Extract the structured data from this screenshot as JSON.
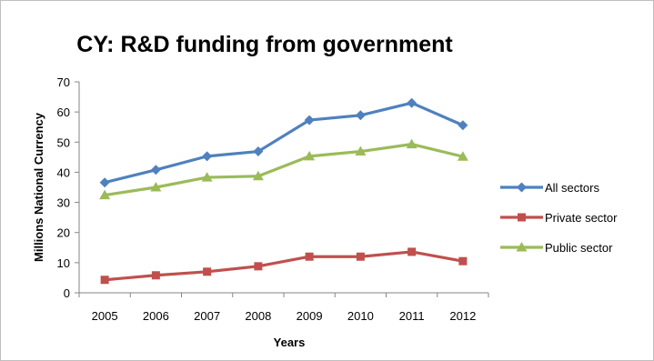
{
  "chart_data": {
    "type": "line",
    "title": "CY: R&D funding from government",
    "xlabel": "Years",
    "ylabel": "Millions National Currency",
    "categories": [
      "2005",
      "2006",
      "2007",
      "2008",
      "2009",
      "2010",
      "2011",
      "2012"
    ],
    "ylim": [
      0,
      70
    ],
    "yticks": [
      0,
      10,
      20,
      30,
      40,
      50,
      60,
      70
    ],
    "grid": false,
    "legend_position": "right",
    "series": [
      {
        "name": "All sectors",
        "color": "#4f81bd",
        "marker": "diamond",
        "values": [
          36.6,
          40.8,
          45.3,
          46.9,
          57.3,
          58.9,
          63.0,
          55.6
        ]
      },
      {
        "name": "Private sector",
        "color": "#c0504d",
        "marker": "square",
        "values": [
          4.3,
          5.8,
          7.0,
          8.8,
          12.0,
          12.0,
          13.6,
          10.5
        ]
      },
      {
        "name": "Public sector",
        "color": "#9bbb59",
        "marker": "triangle",
        "values": [
          32.4,
          35.0,
          38.3,
          38.7,
          45.3,
          46.9,
          49.3,
          45.2
        ]
      }
    ]
  }
}
